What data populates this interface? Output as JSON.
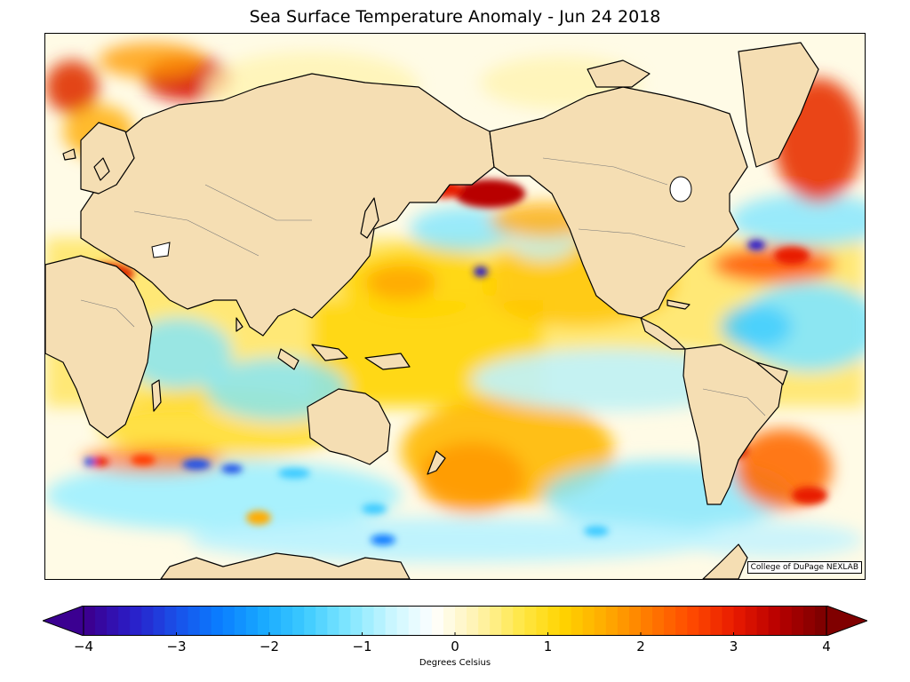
{
  "title": "Sea Surface Temperature Anomaly - Jun 24 2018",
  "credit": "College of DuPage NEXLAB",
  "colorbar": {
    "label": "Degrees Celsius",
    "min": -4,
    "max": 4,
    "ticks": [
      "−4",
      "−3",
      "−2",
      "−1",
      "0",
      "1",
      "2",
      "3",
      "4"
    ],
    "colors": [
      "#3b0091",
      "#2a1ec8",
      "#1a4fe8",
      "#0a7cff",
      "#18a8ff",
      "#3ccaff",
      "#7fe6ff",
      "#c8f6ff",
      "#ffffff",
      "#fff3b0",
      "#ffe84a",
      "#ffd400",
      "#ffab00",
      "#ff7a00",
      "#ff4a00",
      "#e81a00",
      "#b80000",
      "#800000"
    ]
  },
  "map": {
    "land_color": "#f5deb3",
    "warm_color": "#ffd200",
    "hot_color": "#e03000",
    "cool_color": "#7fe6ff",
    "cold_color": "#2a7cff"
  }
}
